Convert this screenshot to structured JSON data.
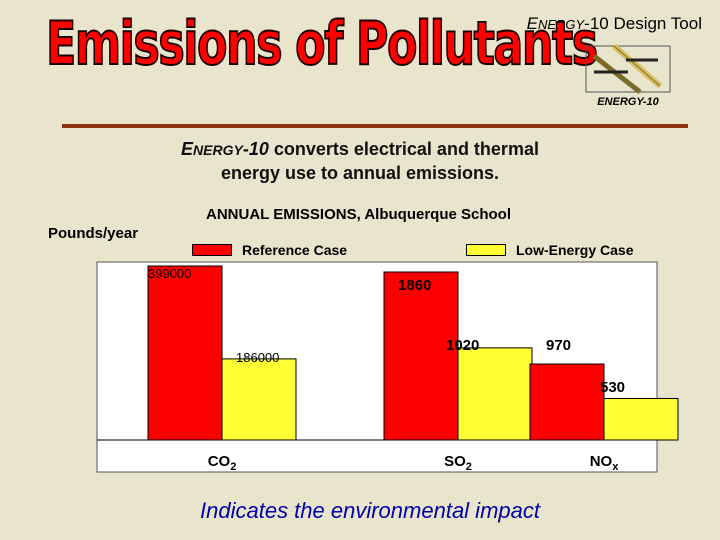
{
  "header": {
    "tool_brand_first": "E",
    "tool_brand_rest": "NERGY",
    "tool_brand_suffix": "-10 Design Tool",
    "title": "Emissions of Pollutants",
    "logo_caption": "ENERGY-10"
  },
  "subtitle": {
    "brand_first": "E",
    "brand_rest": "NERGY",
    "brand_suffix": "-10",
    "text_line1": " converts electrical and thermal",
    "text_line2": "energy use to annual emissions."
  },
  "footer": {
    "text": "Indicates the environmental impact"
  },
  "colors": {
    "reference": "#ff0000",
    "low_energy": "#ffff33",
    "title_red": "#ff0000",
    "rule_brown": "#8a3311",
    "footer_blue": "#0000aa"
  },
  "chart_data": {
    "type": "bar",
    "title": "ANNUAL EMISSIONS, Albuquerque School",
    "ylabel": "Pounds/year",
    "categories": [
      {
        "base": "CO",
        "sub": "2"
      },
      {
        "base": "SO",
        "sub": "2"
      },
      {
        "base": "NO",
        "sub": "x"
      }
    ],
    "series": [
      {
        "name": "Reference Case",
        "values": [
          399000,
          1860,
          970
        ]
      },
      {
        "name": "Low-Energy Case",
        "values": [
          186000,
          1020,
          530
        ]
      }
    ],
    "value_labels": [
      [
        "399000",
        "186000"
      ],
      [
        "1860",
        "1020"
      ],
      [
        "970",
        "530"
      ]
    ],
    "legend_position": "top",
    "grid": false,
    "per_category_scale": true
  }
}
